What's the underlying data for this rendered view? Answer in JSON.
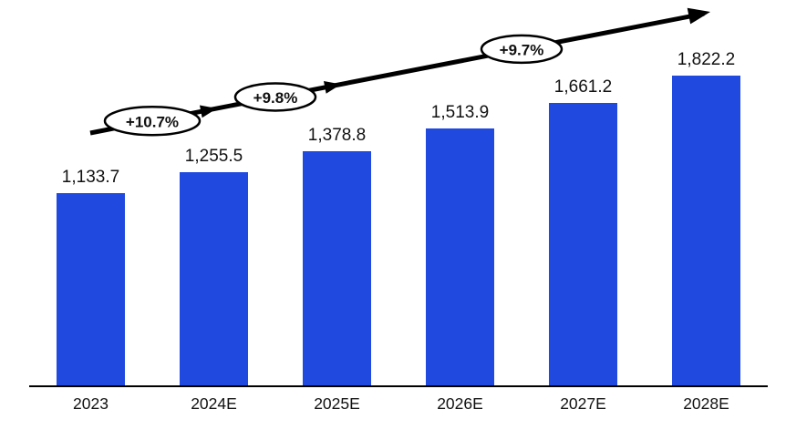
{
  "chart_data": {
    "type": "bar",
    "title": "",
    "categories": [
      "2023",
      "2024E",
      "2025E",
      "2026E",
      "2027E",
      "2028E"
    ],
    "values": [
      1133.7,
      1255.5,
      1378.8,
      1513.9,
      1661.2,
      1822.2
    ],
    "value_labels": [
      "1,133.7",
      "1,255.5",
      "1,378.8",
      "1,513.9",
      "1,661.2",
      "1,822.2"
    ],
    "growth_annotations": [
      {
        "label": "+10.7%",
        "from": "2023",
        "to": "2024E"
      },
      {
        "label": "+9.8%",
        "from": "2024E",
        "to": "2025E"
      },
      {
        "label": "+9.7%",
        "from": "2026E",
        "to": "2027E"
      }
    ],
    "bar_color": "#2049E0",
    "axis_color": "#000000",
    "text_color": "#111111",
    "annotation_fill": "#ffffff",
    "annotation_stroke": "#000000",
    "ylim": [
      0,
      1900
    ],
    "grid": false,
    "legend": false
  }
}
